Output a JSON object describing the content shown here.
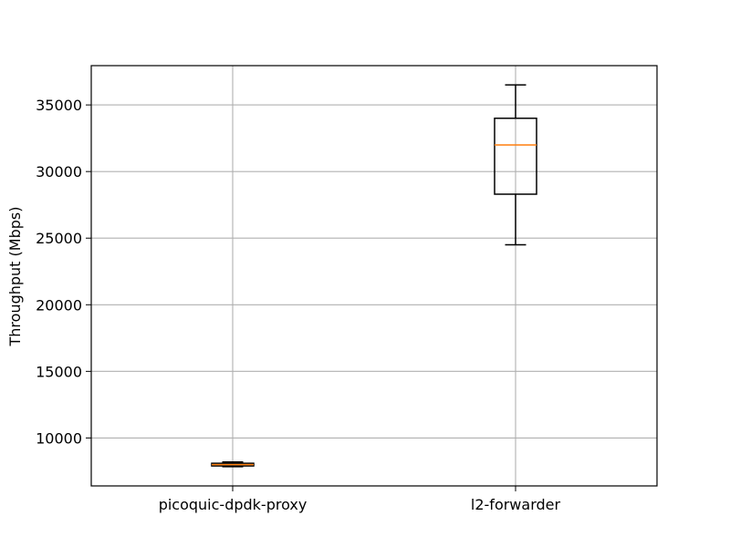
{
  "chart_data": {
    "type": "box",
    "title": "",
    "xlabel": "",
    "ylabel": "Throughput (Mbps)",
    "categories": [
      "picoquic-dpdk-proxy",
      "l2-forwarder"
    ],
    "boxes": [
      {
        "name": "picoquic-dpdk-proxy",
        "whisker_low": 7850,
        "q1": 7900,
        "median": 8000,
        "q3": 8100,
        "whisker_high": 8200
      },
      {
        "name": "l2-forwarder",
        "whisker_low": 24500,
        "q1": 28300,
        "median": 32000,
        "q3": 34000,
        "whisker_high": 36500
      }
    ],
    "yticks": [
      10000,
      15000,
      20000,
      25000,
      30000,
      35000
    ],
    "ytick_labels": [
      "10000",
      "15000",
      "20000",
      "25000",
      "30000",
      "35000"
    ],
    "ylim": [
      6400,
      37950
    ],
    "grid": true,
    "colors": {
      "box": "#000000",
      "median": "#ff7f0e",
      "grid": "#b0b0b0"
    }
  }
}
